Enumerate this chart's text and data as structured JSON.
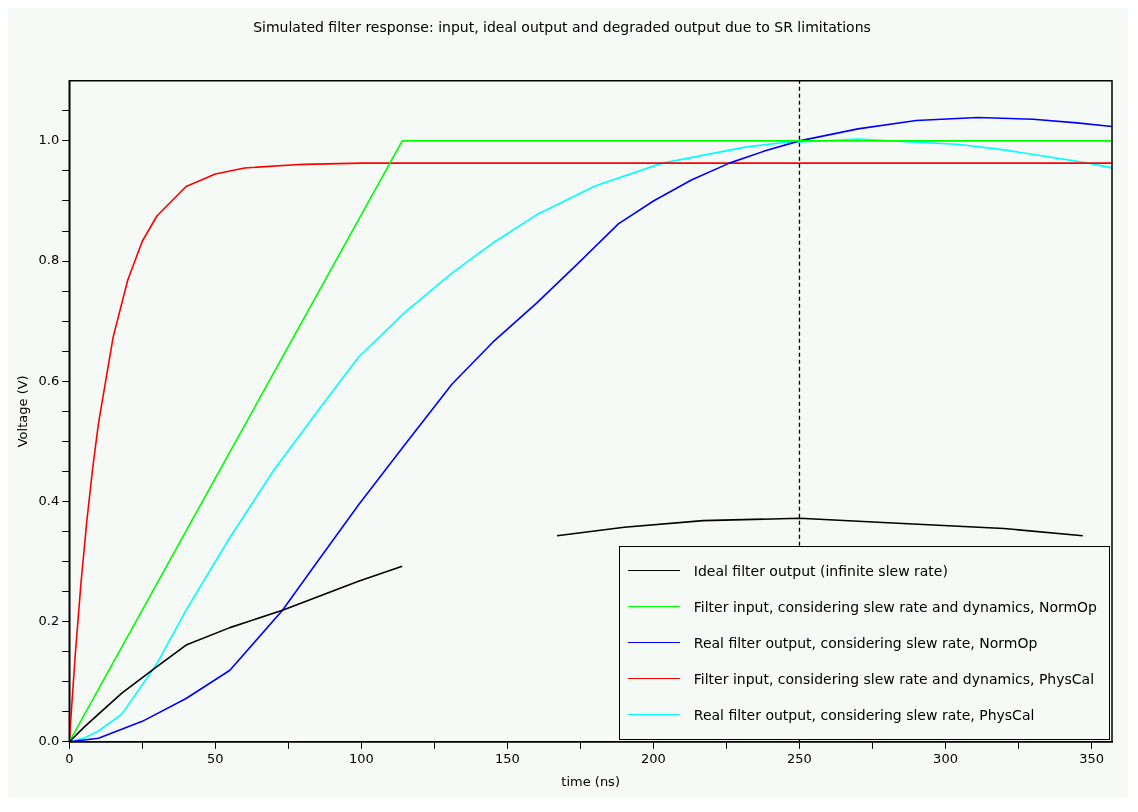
{
  "chart_data": {
    "type": "line",
    "title": "Simulated filter response: input, ideal output and degraded output due to SR limitations",
    "xlabel": "time (ns)",
    "ylabel": "Voltage (V)",
    "xlim": [
      0,
      357
    ],
    "ylim": [
      0,
      1.1
    ],
    "xticks": [
      0,
      {
        "value": 25,
        "label": null
      },
      50,
      {
        "value": 75,
        "label": null
      },
      100,
      {
        "value": 125,
        "label": null
      },
      150,
      {
        "value": 175,
        "label": null
      },
      200,
      {
        "value": 225,
        "label": null
      },
      250,
      {
        "value": 275,
        "label": null
      },
      300,
      {
        "value": 325,
        "label": null
      },
      350
    ],
    "yticks": [
      {
        "value": 0,
        "label": "0.0"
      },
      {
        "value": 0.05,
        "label": null
      },
      {
        "value": 0.1,
        "label": null
      },
      {
        "value": 0.15,
        "label": null
      },
      0.2,
      {
        "value": 0.25,
        "label": null
      },
      {
        "value": 0.3,
        "label": null
      },
      {
        "value": 0.35,
        "label": null
      },
      0.4,
      {
        "value": 0.45,
        "label": null
      },
      {
        "value": 0.5,
        "label": null
      },
      {
        "value": 0.55,
        "label": null
      },
      0.6,
      {
        "value": 0.65,
        "label": null
      },
      {
        "value": 0.7,
        "label": null
      },
      {
        "value": 0.75,
        "label": null
      },
      0.8,
      {
        "value": 0.85,
        "label": null
      },
      {
        "value": 0.9,
        "label": null
      },
      {
        "value": 0.95,
        "label": null
      },
      {
        "value": 1,
        "label": "1.0"
      },
      {
        "value": 1.05,
        "label": null
      }
    ],
    "grid": false,
    "legend": "bottom right",
    "marker": "none",
    "line_style": "solid",
    "ref_lines": [
      {
        "axis": "x",
        "value": 250,
        "color": "#000000",
        "line_style": "dashed"
      }
    ],
    "series": [
      {
        "name": "Ideal filter output (infinite slew rate)",
        "color": "#000000",
        "x": [
          0,
          5,
          10,
          18,
          30,
          40,
          55,
          73,
          99,
          114,
          140,
          167,
          190,
          217,
          250,
          282,
          320,
          347
        ],
        "values": [
          0,
          0.024,
          0.046,
          0.081,
          0.125,
          0.161,
          0.19,
          0.219,
          0.267,
          0.292,
          null,
          0.343,
          0.357,
          0.368,
          0.372,
          0.364,
          0.355,
          0.343
        ]
      },
      {
        "name": "Filter input, considering slew rate and dynamics, NormOp",
        "color": "#00ff00",
        "x": [
          0,
          114,
          357
        ],
        "values": [
          0,
          1,
          1
        ]
      },
      {
        "name": "Real filter output, considering slew rate, NormOp",
        "color": "#0000ff",
        "x": [
          0,
          10,
          25,
          40,
          55,
          73,
          85,
          99,
          115,
          131,
          145,
          160,
          175,
          188,
          200,
          213,
          226,
          238,
          250,
          270,
          290,
          311,
          330,
          345,
          357
        ],
        "values": [
          0,
          0.006,
          0.034,
          0.072,
          0.119,
          0.219,
          0.3,
          0.394,
          0.495,
          0.595,
          0.665,
          0.73,
          0.8,
          0.862,
          0.9,
          0.935,
          0.963,
          0.983,
          1,
          1.02,
          1.034,
          1.039,
          1.036,
          1.03,
          1.024
        ]
      },
      {
        "name": "Filter input, considering slew rate and dynamics, PhysCal",
        "color": "#ff0000",
        "x": [
          0,
          2,
          4,
          6,
          8,
          10,
          15,
          20,
          25,
          30,
          40,
          50,
          60,
          80,
          100,
          357
        ],
        "values": [
          0,
          0.142,
          0.264,
          0.367,
          0.455,
          0.53,
          0.673,
          0.768,
          0.833,
          0.875,
          0.924,
          0.945,
          0.955,
          0.961,
          0.963,
          0.963
        ]
      },
      {
        "name": "Real filter output, considering slew rate, PhysCal",
        "color": "#00ffff",
        "x": [
          0,
          5,
          10,
          18,
          30,
          40,
          55,
          70,
          85,
          99,
          115,
          131,
          145,
          160,
          180,
          203,
          232,
          244,
          270,
          305,
          320,
          349,
          357
        ],
        "values": [
          0,
          0.006,
          0.018,
          0.046,
          0.13,
          0.219,
          0.34,
          0.452,
          0.55,
          0.64,
          0.715,
          0.78,
          0.83,
          0.877,
          0.925,
          0.963,
          0.99,
          0.997,
          1.003,
          0.994,
          0.985,
          0.963,
          0.955
        ]
      }
    ]
  }
}
